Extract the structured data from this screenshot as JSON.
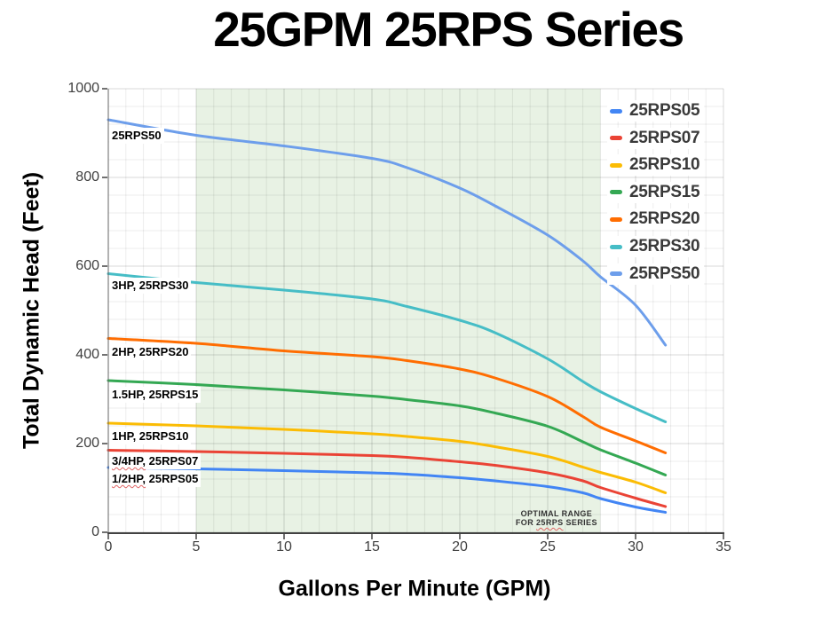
{
  "chart_data": {
    "type": "line",
    "title": "25GPM 25RPS Series",
    "xlabel": "Gallons Per Minute (GPM)",
    "ylabel": "Total Dynamic Head (Feet)",
    "xlim": [
      0,
      35
    ],
    "ylim": [
      0,
      1000
    ],
    "x_ticks": [
      0,
      5,
      10,
      15,
      20,
      25,
      30,
      35
    ],
    "y_ticks": [
      0,
      200,
      400,
      600,
      800,
      1000
    ],
    "minor_grid": {
      "x_step": 1,
      "y_step": 40
    },
    "legend_position": "top-right-inside",
    "x": [
      0,
      5,
      10,
      15,
      17,
      20,
      22,
      25,
      27,
      28,
      30,
      31.7
    ],
    "series": [
      {
        "name": "25RPS05",
        "hp": "1/2HP",
        "color": "#4285F4",
        "values": [
          146,
          143,
          139,
          134,
          131,
          123,
          116,
          103,
          89,
          76,
          57,
          45
        ]
      },
      {
        "name": "25RPS07",
        "hp": "3/4HP",
        "color": "#EA4335",
        "values": [
          185,
          182,
          178,
          173,
          169,
          159,
          151,
          134,
          116,
          101,
          77,
          58
        ]
      },
      {
        "name": "25RPS10",
        "hp": "1HP",
        "color": "#FBBC04",
        "values": [
          246,
          240,
          232,
          222,
          216,
          205,
          193,
          171,
          147,
          135,
          113,
          89
        ]
      },
      {
        "name": "25RPS15",
        "hp": "1.5HP",
        "color": "#34A853",
        "values": [
          342,
          333,
          321,
          307,
          299,
          285,
          269,
          239,
          204,
          186,
          156,
          129
        ]
      },
      {
        "name": "25RPS20",
        "hp": "2HP",
        "color": "#FF6D01",
        "values": [
          437,
          426,
          409,
          396,
          387,
          368,
          348,
          306,
          261,
          237,
          206,
          179
        ]
      },
      {
        "name": "25RPS30",
        "hp": "3HP",
        "color": "#46BDC6",
        "values": [
          583,
          563,
          546,
          526,
          509,
          478,
          450,
          391,
          340,
          317,
          279,
          249
        ]
      },
      {
        "name": "25RPS50",
        "hp": "",
        "color": "#6D9EEB",
        "values": [
          930,
          895,
          871,
          843,
          822,
          776,
          736,
          670,
          612,
          576,
          512,
          422
        ]
      }
    ],
    "optimal_range": {
      "x_start": 5,
      "x_end": 28,
      "band_color": "#E8F2E4",
      "note_lines": [
        "OPTIMAL RANGE",
        "FOR ~25RPS~ SERIES"
      ],
      "note_gpm": 25.5,
      "note_feet": 42
    },
    "curve_labels": [
      {
        "text": "25RPS50",
        "gpm": 0.1,
        "feet": 894
      },
      {
        "text": "3HP, 25RPS30",
        "gpm": 0.1,
        "feet": 556
      },
      {
        "text": "2HP, 25RPS20",
        "gpm": 0.1,
        "feet": 406
      },
      {
        "text": "1.5HP, 25RPS15",
        "gpm": 0.1,
        "feet": 310
      },
      {
        "text": "1HP, 25RPS10",
        "gpm": 0.1,
        "feet": 216
      },
      {
        "text": "~3/4HP,~ 25RPS07",
        "gpm": 0.1,
        "feet": 160
      },
      {
        "text": "~1/2HP,~ 25RPS05",
        "gpm": 0.1,
        "feet": 120
      }
    ],
    "style": {
      "grid_minor": "rgba(0,0,0,0.075)",
      "grid_major": "rgba(0,0,0,0.15)",
      "axis_line": "#424242",
      "y_axis_line": "#666666",
      "tick_text": "#3f3f3f",
      "title_color": "#000000",
      "curve_width": 3
    }
  }
}
